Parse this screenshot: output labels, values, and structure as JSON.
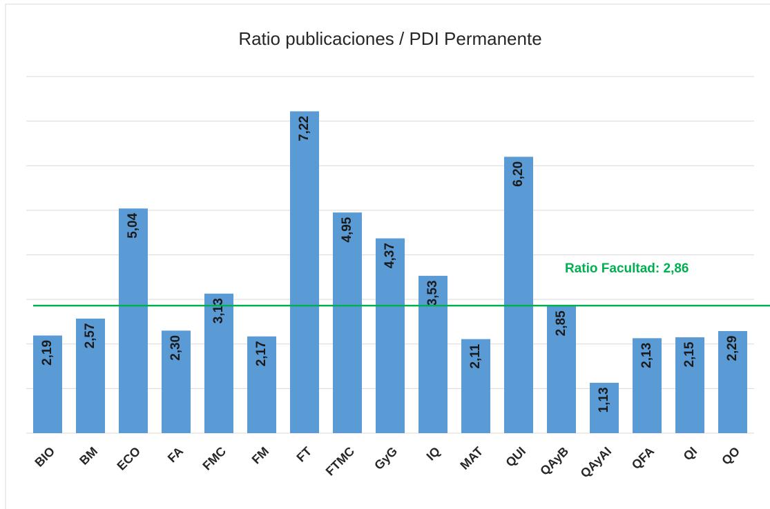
{
  "chart_data": {
    "type": "bar",
    "title": "Ratio publicaciones / PDI Permanente",
    "categories": [
      "BIO",
      "BM",
      "ECO",
      "FA",
      "FMC",
      "FM",
      "FT",
      "FTMC",
      "GyG",
      "IQ",
      "MAT",
      "QUI",
      "QAyB",
      "QAyAI",
      "QFA",
      "QI",
      "QO"
    ],
    "values": [
      2.19,
      2.57,
      5.04,
      2.3,
      3.13,
      2.17,
      7.22,
      4.95,
      4.37,
      3.53,
      2.11,
      6.2,
      2.85,
      1.13,
      2.13,
      2.15,
      2.29
    ],
    "value_labels": [
      "2,19",
      "2,57",
      "5,04",
      "2,30",
      "3,13",
      "2,17",
      "7,22",
      "4,95",
      "4,37",
      "3,53",
      "2,11",
      "6,20",
      "2,85",
      "1,13",
      "2,13",
      "2,15",
      "2,29"
    ],
    "color": "#5b9bd5",
    "ylim": [
      0,
      8
    ],
    "yticks": [
      0,
      1,
      2,
      3,
      4,
      5,
      6,
      7,
      8
    ],
    "grid": true,
    "reference_line": {
      "value": 2.86,
      "label": "Ratio Facultad: 2,86",
      "color": "#00b050"
    }
  }
}
